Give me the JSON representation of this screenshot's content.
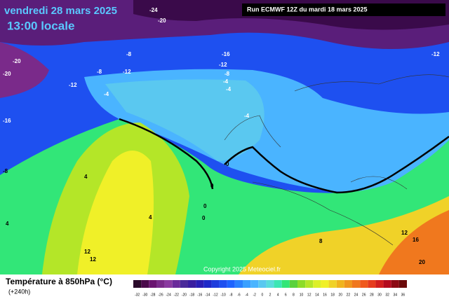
{
  "header": {
    "date": "vendredi 28 mars 2025",
    "time": "13:00 locale",
    "run": "Run ECMWF 12Z du mardi 18 mars 2025"
  },
  "copyright": "Copyright 2025 Meteociel.fr",
  "legend": {
    "title": "Température à 850hPa (°C)",
    "lead": "(+240h)",
    "ticks": [
      -32,
      -30,
      -28,
      -26,
      -24,
      -22,
      -20,
      -18,
      -16,
      -14,
      -12,
      -10,
      -8,
      -6,
      -4,
      -2,
      0,
      2,
      4,
      6,
      8,
      10,
      12,
      14,
      16,
      18,
      20,
      22,
      24,
      26,
      28,
      30,
      32,
      34,
      36
    ],
    "colors": [
      "#2a0a2a",
      "#4a0a4a",
      "#6a1470",
      "#7a2a8a",
      "#8a3aa0",
      "#6a2a9a",
      "#4a2a9a",
      "#3a1ea0",
      "#2a1eb4",
      "#1e28c8",
      "#1e3cdc",
      "#1e50f0",
      "#1e64ff",
      "#2a82ff",
      "#3aa0ff",
      "#4ab4ff",
      "#5ac8f0",
      "#5adcdc",
      "#3ce6b4",
      "#32e678",
      "#5ad23c",
      "#8cdc28",
      "#b4e628",
      "#dcf028",
      "#f0f028",
      "#f0d228",
      "#f0b41e",
      "#f0961e",
      "#f0781e",
      "#f05a1e",
      "#e63c1e",
      "#d21e1e",
      "#b40a1e",
      "#8c0a14",
      "#6a0a0a"
    ]
  },
  "contours": [
    "-24",
    "-20",
    "-20",
    "-8",
    "-12",
    "-8",
    "-12",
    "-16",
    "-12",
    "-8",
    "-4",
    "-4",
    "-4",
    "-12",
    "-16",
    "-8",
    "-4",
    "0",
    "0",
    "0",
    "0",
    "4",
    "4",
    "4",
    "8",
    "12",
    "12",
    "12",
    "16",
    "20",
    "-20"
  ]
}
